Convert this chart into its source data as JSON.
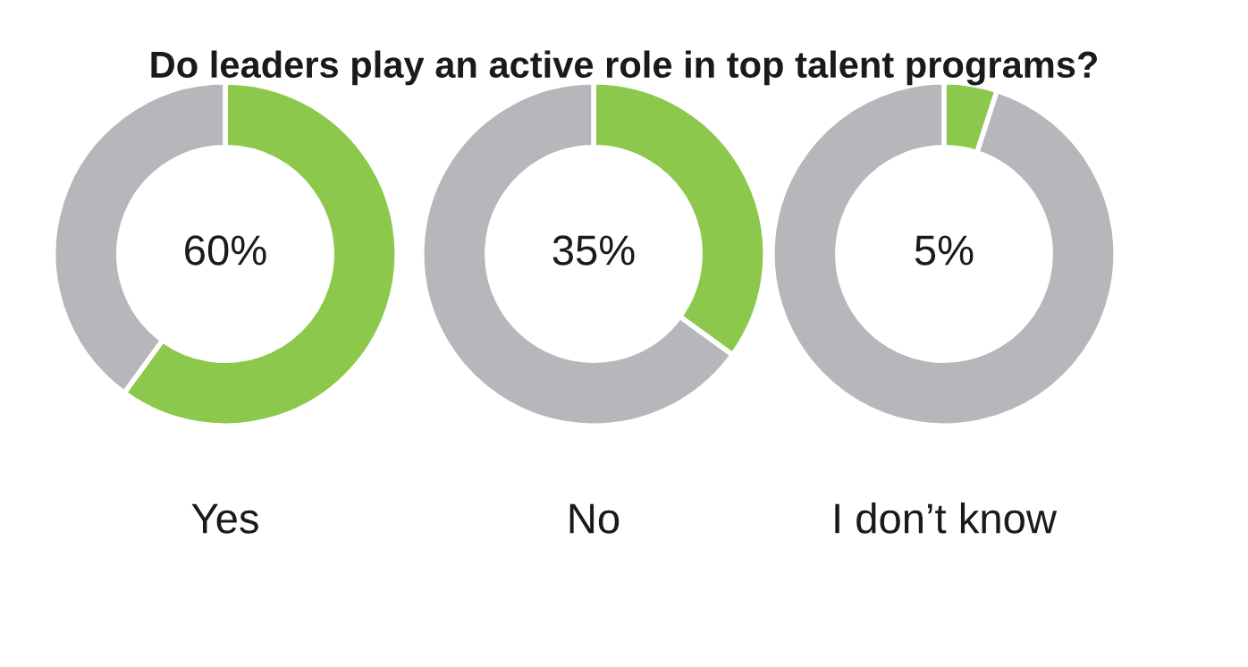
{
  "chart_data": [
    {
      "type": "donut",
      "title": "Do leaders play an active role in top talent programs?",
      "xlabel": "Yes",
      "categories": [
        null,
        null
      ],
      "values": [
        60,
        40
      ],
      "colors": [
        "#8cc84b",
        "#b6b7ba"
      ],
      "value_labels": [
        "60%",
        null
      ],
      "legend": false
    },
    {
      "type": "donut",
      "xlabel": "No",
      "categories": [
        null,
        null
      ],
      "values": [
        35,
        65
      ],
      "colors": [
        "#8cc84b",
        "#b6b7ba"
      ],
      "value_labels": [
        "35%",
        null
      ],
      "legend": false
    },
    {
      "type": "donut",
      "xlabel": "I don’t know",
      "categories": [
        null,
        null
      ],
      "values": [
        5,
        95
      ],
      "colors": [
        "#8cc84b",
        "#b6b7ba"
      ],
      "value_labels": [
        "5%",
        null
      ],
      "legend": false
    }
  ]
}
